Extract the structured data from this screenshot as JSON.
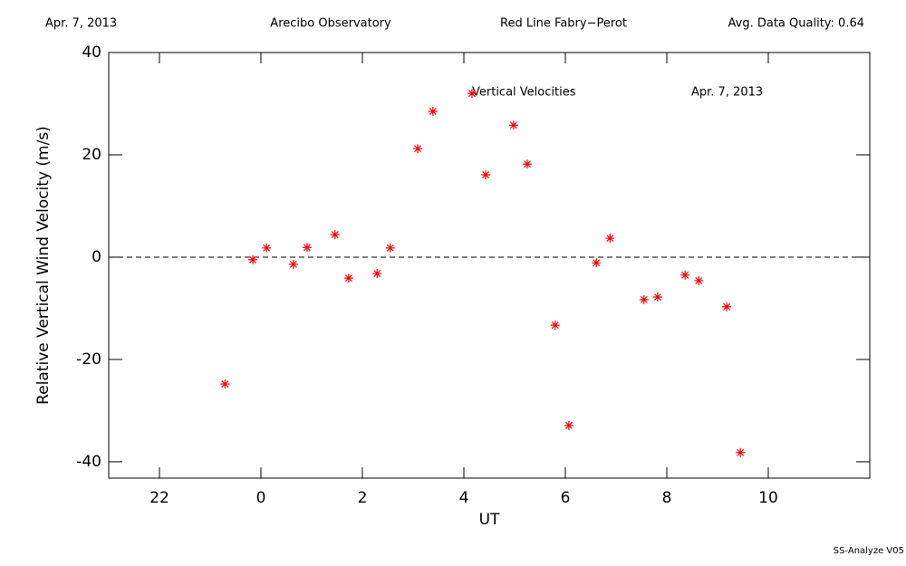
{
  "chart_data": {
    "type": "scatter",
    "header": [
      "Apr. 7, 2013",
      "Arecibo Observatory",
      "Red Line Fabry−Perot",
      "Avg. Data Quality: 0.64"
    ],
    "annotations": [
      "Vertical Velocities",
      "Apr. 7, 2013"
    ],
    "footer": "SS-Analyze V05",
    "xlabel": "UT",
    "ylabel": "Relative Vertical Wind Velocity (m/s)",
    "xlim": [
      -3,
      12
    ],
    "ylim": [
      -43.2,
      40
    ],
    "xticks": [
      {
        "value": -2,
        "label": "22"
      },
      0,
      2,
      4,
      6,
      8,
      10
    ],
    "yticks": [
      -40,
      -20,
      0,
      20,
      40
    ],
    "reference_line": 0,
    "color": "#ff0000",
    "marker": "asterisk",
    "x": [
      -0.71,
      -0.16,
      0.11,
      0.64,
      0.91,
      1.46,
      1.73,
      2.29,
      2.55,
      3.09,
      3.39,
      4.16,
      4.43,
      4.98,
      5.25,
      5.8,
      6.07,
      6.61,
      6.88,
      7.55,
      7.82,
      8.36,
      8.63,
      9.18,
      9.45
    ],
    "values": [
      -24.8,
      -0.5,
      1.8,
      -1.4,
      1.9,
      4.4,
      -4.1,
      -3.2,
      1.8,
      21.2,
      28.5,
      32.0,
      16.1,
      25.8,
      18.2,
      -13.3,
      -32.9,
      -1.1,
      3.7,
      -8.3,
      -7.8,
      -3.5,
      -4.6,
      -9.7,
      -38.2
    ]
  }
}
